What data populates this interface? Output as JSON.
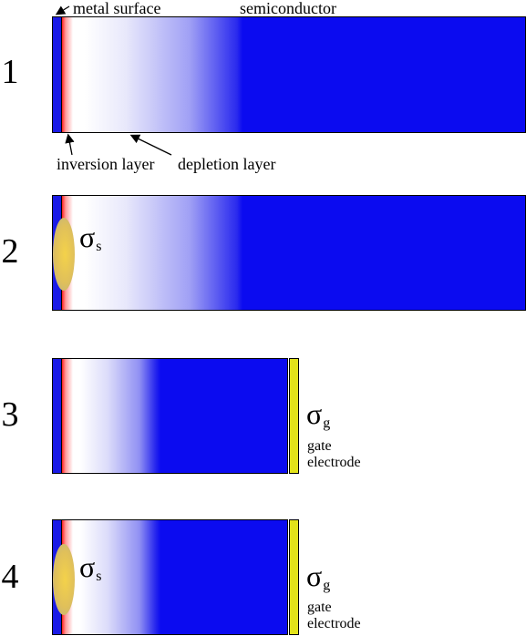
{
  "labels": {
    "metal_surface": "metal surface",
    "semiconductor": "semiconductor",
    "inversion_layer": "inversion layer",
    "depletion_layer": "depletion layer"
  },
  "panels": [
    {
      "number": "1"
    },
    {
      "number": "2",
      "sigma_s": "σ",
      "sigma_s_sub": "s"
    },
    {
      "number": "3",
      "sigma_g": "σ",
      "sigma_g_sub": "g",
      "gate_label_1": "gate",
      "gate_label_2": "electrode"
    },
    {
      "number": "4",
      "sigma_s": "σ",
      "sigma_s_sub": "s",
      "sigma_g": "σ",
      "sigma_g_sub": "g",
      "gate_label_1": "gate",
      "gate_label_2": "electrode"
    }
  ],
  "colors": {
    "semiconductor_blue": "#0b0bf0",
    "metal_blue": "#1a1ae6",
    "inversion_red": "#ff2020",
    "charge_yellow": "#f4d24a",
    "gate_yellow": "#e3e31a"
  }
}
